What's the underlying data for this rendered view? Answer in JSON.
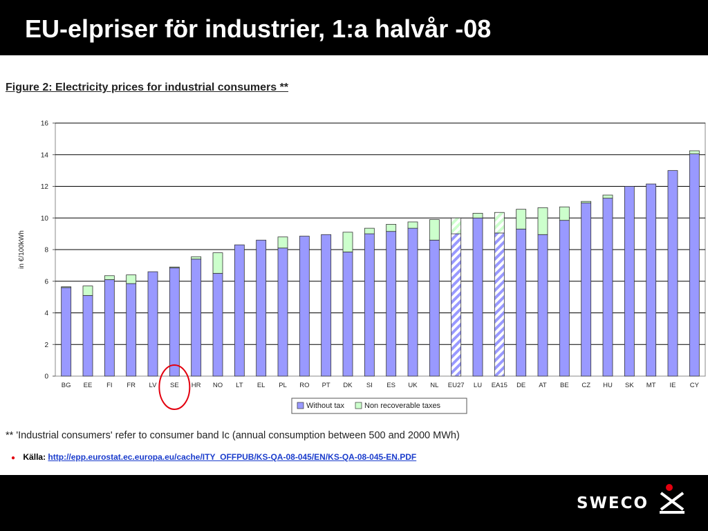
{
  "slide": {
    "title": "EU-elpriser för industrier, 1:a halvår -08",
    "figure_title": "Figure 2: Electricity prices for industrial consumers **",
    "footnote": "** 'Industrial consumers' refer to consumer band Ic (annual consumption between 500 and 2000 MWh)",
    "source_label": "Källa:",
    "source_url": "http://epp.eurostat.ec.europa.eu/cache/ITY_OFFPUB/KS-QA-08-045/EN/KS-QA-08-045-EN.PDF",
    "logo_text": "SWECO",
    "highlighted_category": "SE"
  },
  "colors": {
    "without_tax": "#9999ff",
    "non_recoverable_taxes": "#ccffcc",
    "highlight_circle": "#e3000f",
    "source_link": "#1a3ccc",
    "logo_accent": "#e3000f"
  },
  "chart_data": {
    "type": "bar",
    "stacked": true,
    "ylabel": "in €/100kWh",
    "xlabel": "",
    "ylim": [
      0,
      16
    ],
    "yticks": [
      0,
      2,
      4,
      6,
      8,
      10,
      12,
      14,
      16
    ],
    "grid": true,
    "legend_position": "bottom-center",
    "categories": [
      "BG",
      "EE",
      "FI",
      "FR",
      "LV",
      "SE",
      "HR",
      "NO",
      "LT",
      "EL",
      "PL",
      "RO",
      "PT",
      "DK",
      "SI",
      "ES",
      "UK",
      "NL",
      "EU27",
      "LU",
      "EA15",
      "DE",
      "AT",
      "BE",
      "CZ",
      "HU",
      "SK",
      "MT",
      "IE",
      "CY"
    ],
    "hatched_categories": [
      "EU27",
      "EA15"
    ],
    "series": [
      {
        "name": "Without tax",
        "values": [
          5.6,
          5.1,
          6.1,
          5.85,
          6.6,
          6.85,
          7.4,
          6.5,
          8.3,
          8.6,
          8.1,
          8.85,
          8.95,
          7.85,
          9.0,
          9.15,
          9.35,
          8.6,
          9.0,
          10.0,
          9.05,
          9.3,
          8.95,
          9.85,
          10.95,
          11.25,
          12.0,
          12.15,
          13.0,
          14.05
        ]
      },
      {
        "name": "Non recoverable taxes",
        "values": [
          0.05,
          0.6,
          0.25,
          0.55,
          0.0,
          0.05,
          0.15,
          1.3,
          0.0,
          0.0,
          0.7,
          0.0,
          0.0,
          1.25,
          0.35,
          0.45,
          0.4,
          1.3,
          1.0,
          0.3,
          1.3,
          1.25,
          1.7,
          0.85,
          0.1,
          0.2,
          0.0,
          0.0,
          0.0,
          0.2
        ]
      }
    ]
  }
}
